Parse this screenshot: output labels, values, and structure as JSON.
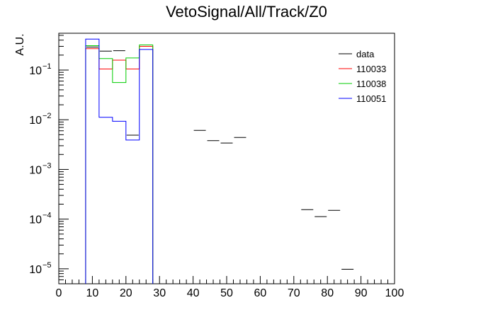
{
  "chart_data": {
    "type": "bar",
    "title": "VetoSignal/All/Track/Z0",
    "ylabel": "A.U.",
    "xlabel": "",
    "xlim": [
      0,
      100
    ],
    "ylim": [
      5e-06,
      0.55
    ],
    "yscale": "log",
    "grid": false,
    "legend_position": "top-right",
    "x_ticks": [
      "0",
      "10",
      "20",
      "30",
      "40",
      "50",
      "60",
      "70",
      "80",
      "90",
      "100"
    ],
    "y_ticks": [
      {
        "base": "10",
        "exp": "−1",
        "value": 0.1
      },
      {
        "base": "10",
        "exp": "−2",
        "value": 0.01
      },
      {
        "base": "10",
        "exp": "−3",
        "value": 0.001
      },
      {
        "base": "10",
        "exp": "−4",
        "value": 0.0001
      },
      {
        "base": "10",
        "exp": "−5",
        "value": 1e-05
      }
    ],
    "bin_width": 4,
    "series": [
      {
        "name": "data",
        "color": "#000000",
        "style": "markers",
        "points": [
          {
            "x": 10,
            "y": 0.29
          },
          {
            "x": 14,
            "y": 0.24
          },
          {
            "x": 18,
            "y": 0.245
          },
          {
            "x": 22,
            "y": 0.0049
          },
          {
            "x": 42,
            "y": 0.0061
          },
          {
            "x": 46,
            "y": 0.0038
          },
          {
            "x": 50,
            "y": 0.0034
          },
          {
            "x": 54,
            "y": 0.0044
          },
          {
            "x": 74,
            "y": 0.000155
          },
          {
            "x": 78,
            "y": 0.000112
          },
          {
            "x": 82,
            "y": 0.00015
          },
          {
            "x": 86,
            "y": 9.8e-06
          }
        ]
      },
      {
        "name": "110033",
        "color": "#ff0000",
        "style": "step",
        "bins": [
          {
            "x0": 8,
            "x1": 12,
            "y": 0.27
          },
          {
            "x0": 12,
            "x1": 16,
            "y": 0.105
          },
          {
            "x0": 16,
            "x1": 20,
            "y": 0.158
          },
          {
            "x0": 20,
            "x1": 24,
            "y": 0.105
          },
          {
            "x0": 24,
            "x1": 28,
            "y": 0.3
          }
        ]
      },
      {
        "name": "110038",
        "color": "#00cc00",
        "style": "step",
        "bins": [
          {
            "x0": 8,
            "x1": 12,
            "y": 0.31
          },
          {
            "x0": 12,
            "x1": 16,
            "y": 0.17
          },
          {
            "x0": 16,
            "x1": 20,
            "y": 0.056
          },
          {
            "x0": 20,
            "x1": 24,
            "y": 0.175
          },
          {
            "x0": 24,
            "x1": 28,
            "y": 0.32
          }
        ]
      },
      {
        "name": "110051",
        "color": "#0000ff",
        "style": "step",
        "bins": [
          {
            "x0": 8,
            "x1": 12,
            "y": 0.42
          },
          {
            "x0": 12,
            "x1": 16,
            "y": 0.0112
          },
          {
            "x0": 16,
            "x1": 20,
            "y": 0.0093
          },
          {
            "x0": 20,
            "x1": 24,
            "y": 0.0039
          },
          {
            "x0": 24,
            "x1": 28,
            "y": 0.26
          }
        ]
      }
    ]
  }
}
